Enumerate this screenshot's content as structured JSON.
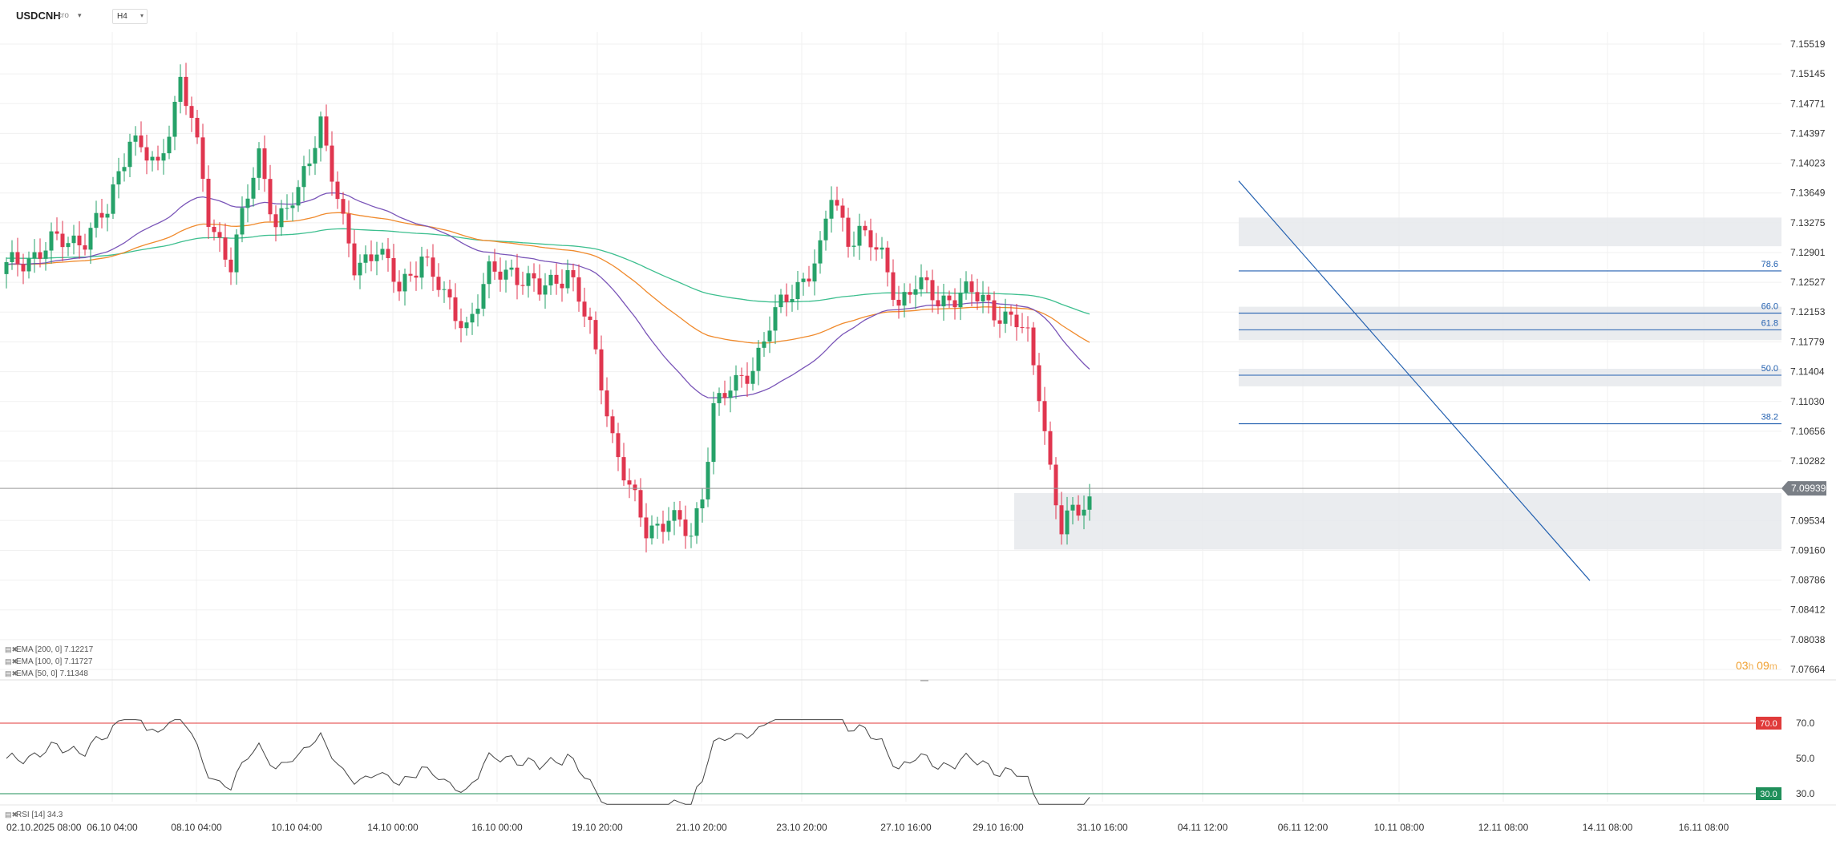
{
  "header": {
    "symbol": "USDCNH",
    "symbol_suffix": "cro",
    "symbol_caret": "▾",
    "timeframe": "H4",
    "timeframe_caret": "▾"
  },
  "price_axis": {
    "labels": [
      "7.15519",
      "7.15145",
      "7.14771",
      "7.14397",
      "7.14023",
      "7.13649",
      "7.13275",
      "7.12901",
      "7.12527",
      "7.12153",
      "7.11779",
      "7.11404",
      "7.11030",
      "7.10656",
      "7.10282",
      "7.09534",
      "7.09160",
      "7.08786",
      "7.08412",
      "7.08038",
      "7.07664"
    ],
    "current_price": "7.09939"
  },
  "time_axis": {
    "labels": [
      "02.10.2025  08:00",
      "06.10 04:00",
      "08.10 04:00",
      "10.10 04:00",
      "14.10 00:00",
      "16.10 00:00",
      "19.10 20:00",
      "21.10 20:00",
      "23.10 20:00",
      "27.10 16:00",
      "29.10 16:00",
      "31.10 16:00",
      "04.11 12:00",
      "06.11 12:00",
      "10.11 08:00",
      "12.11 08:00",
      "14.11 08:00",
      "16.11 08:00"
    ]
  },
  "indicators": {
    "ema200": {
      "label": "EMA [200, 0] 7.12217",
      "color": "#3dbf8f"
    },
    "ema100": {
      "label": "EMA [100, 0] 7.11727",
      "color": "#f08a2c"
    },
    "ema50": {
      "label": "EMA [50, 0] 7.11348",
      "color": "#7a55b8"
    },
    "rsi": {
      "label": "RSI [14] 34.3",
      "color": "#444444"
    }
  },
  "fibonacci": {
    "levels": [
      {
        "label": "78.6",
        "price": 7.1267
      },
      {
        "label": "66.0",
        "price": 7.1214
      },
      {
        "label": "61.8",
        "price": 7.1193
      },
      {
        "label": "50.0",
        "price": 7.1136
      },
      {
        "label": "38.2",
        "price": 7.1075
      }
    ],
    "color": "#2461b0"
  },
  "rsi_axis": {
    "labels": [
      "70.0",
      "50.0",
      "30.0"
    ],
    "overbought": "70.0",
    "oversold": "30.0",
    "overbought_color": "#e03a3a",
    "oversold_color": "#1f8f5a"
  },
  "countdown": {
    "hours": "03",
    "h_unit": "h",
    "minutes": "09",
    "m_unit": "m"
  },
  "colors": {
    "bull": "#26a269",
    "bear": "#e0364f",
    "zone": "#e6e9ec",
    "grid": "#f0f0f0"
  }
}
